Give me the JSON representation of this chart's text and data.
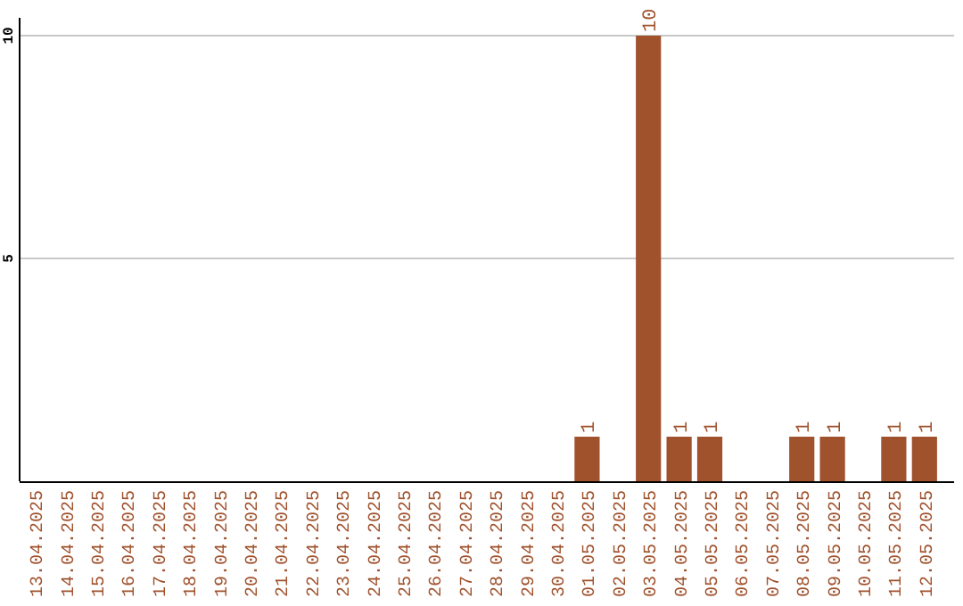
{
  "chart_data": {
    "type": "bar",
    "categories": [
      "13.04.2025",
      "14.04.2025",
      "15.04.2025",
      "16.04.2025",
      "17.04.2025",
      "18.04.2025",
      "19.04.2025",
      "20.04.2025",
      "21.04.2025",
      "22.04.2025",
      "23.04.2025",
      "24.04.2025",
      "25.04.2025",
      "26.04.2025",
      "27.04.2025",
      "28.04.2025",
      "29.04.2025",
      "30.04.2025",
      "01.05.2025",
      "02.05.2025",
      "03.05.2025",
      "04.05.2025",
      "05.05.2025",
      "06.05.2025",
      "07.05.2025",
      "08.05.2025",
      "09.05.2025",
      "10.05.2025",
      "11.05.2025",
      "12.05.2025"
    ],
    "values": [
      0,
      0,
      0,
      0,
      0,
      0,
      0,
      0,
      0,
      0,
      0,
      0,
      0,
      0,
      0,
      0,
      0,
      0,
      1,
      0,
      10,
      1,
      1,
      0,
      0,
      1,
      1,
      0,
      1,
      1
    ],
    "value_labels": [
      null,
      null,
      null,
      null,
      null,
      null,
      null,
      null,
      null,
      null,
      null,
      null,
      null,
      null,
      null,
      null,
      null,
      null,
      "1",
      null,
      "10",
      "1",
      "1",
      null,
      null,
      "1",
      "1",
      null,
      "1",
      "1"
    ],
    "color": "#a0522d",
    "ylim": [
      0,
      10.4
    ],
    "yticks": [
      5,
      10
    ],
    "grid": "y"
  }
}
